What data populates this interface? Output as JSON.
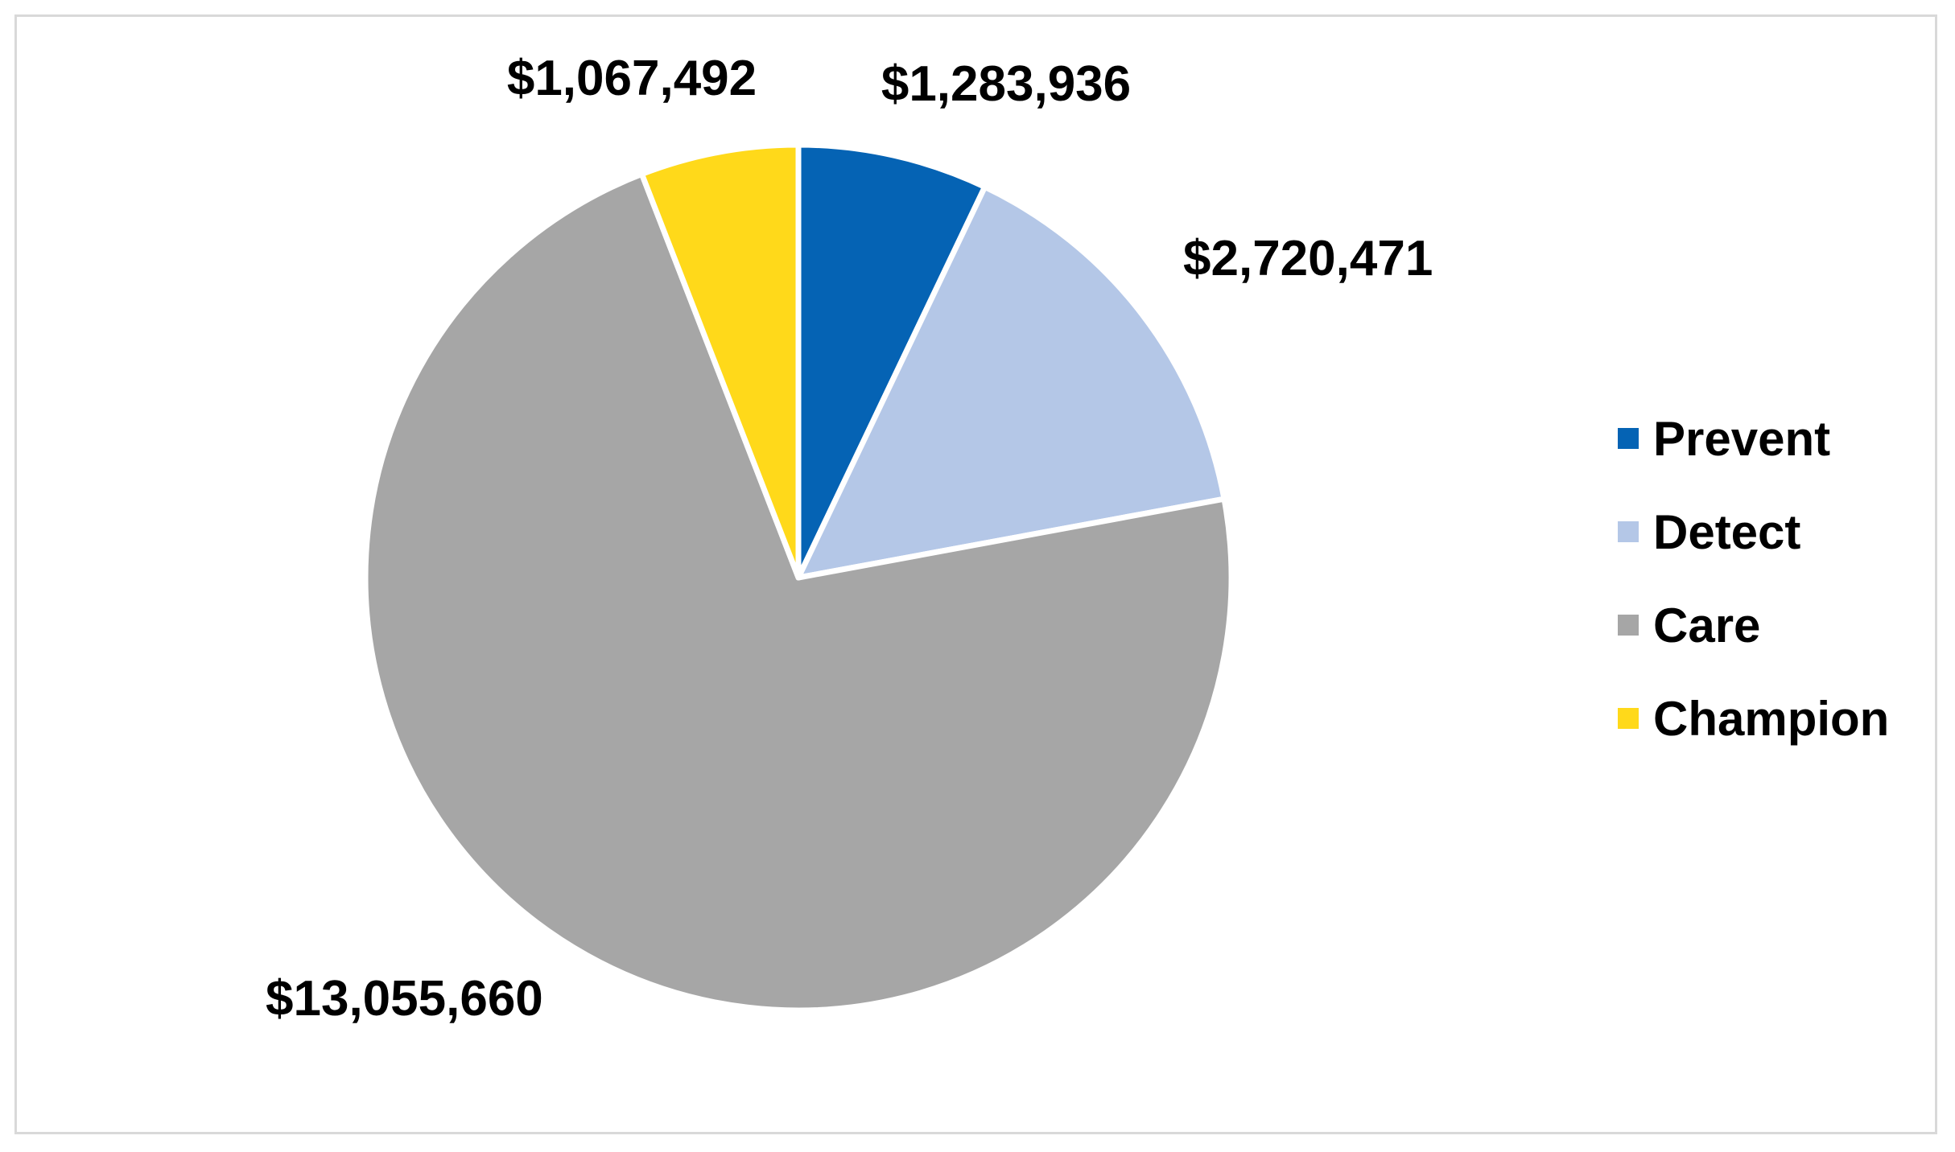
{
  "chart_data": {
    "type": "pie",
    "title": "",
    "categories": [
      "Prevent",
      "Detect",
      "Care",
      "Champion"
    ],
    "values": [
      1283936,
      2720471,
      13055660,
      1067492
    ],
    "value_labels": [
      "$1,283,936",
      "$2,720,471",
      "$13,055,660",
      "$1,067,492"
    ],
    "colors": [
      "#0563b4",
      "#b4c7e7",
      "#a6a6a6",
      "#ffd91a"
    ],
    "start_angle_deg": 0,
    "direction": "clockwise",
    "legend": {
      "position": "right",
      "entries": [
        "Prevent",
        "Detect",
        "Care",
        "Champion"
      ]
    },
    "labels_position": "outside"
  }
}
